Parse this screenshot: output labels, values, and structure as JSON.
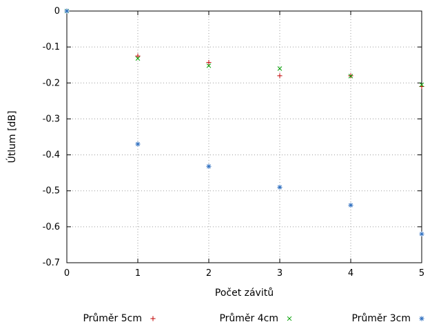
{
  "chart_data": {
    "type": "scatter",
    "title": "",
    "xlabel": "Počet závitů",
    "ylabel": "Útlum [dB]",
    "xlim": [
      0,
      5
    ],
    "ylim": [
      -0.7,
      0
    ],
    "xticks": [
      0,
      1,
      2,
      3,
      4,
      5
    ],
    "yticks": [
      0,
      -0.1,
      -0.2,
      -0.3,
      -0.4,
      -0.5,
      -0.6,
      -0.7
    ],
    "grid": true,
    "grid_style": "dotted",
    "legend_position": "bottom-horizontal",
    "axis_color": "#000000",
    "grid_color": "#9a9a9a",
    "series": [
      {
        "name": "Průměr 5cm",
        "marker": "plus",
        "color": "#c00000",
        "x": [
          0,
          1,
          2,
          3,
          4,
          5
        ],
        "y": [
          0,
          -0.125,
          -0.143,
          -0.18,
          -0.18,
          -0.21
        ]
      },
      {
        "name": "Průměr 4cm",
        "marker": "cross",
        "color": "#00a000",
        "x": [
          0,
          1,
          2,
          3,
          4,
          5
        ],
        "y": [
          0,
          -0.132,
          -0.152,
          -0.16,
          -0.181,
          -0.205
        ]
      },
      {
        "name": "Průměr 3cm",
        "marker": "asterisk",
        "color": "#3070c0",
        "x": [
          0,
          1,
          2,
          3,
          4,
          5
        ],
        "y": [
          0,
          -0.37,
          -0.432,
          -0.49,
          -0.54,
          -0.62
        ]
      }
    ]
  }
}
